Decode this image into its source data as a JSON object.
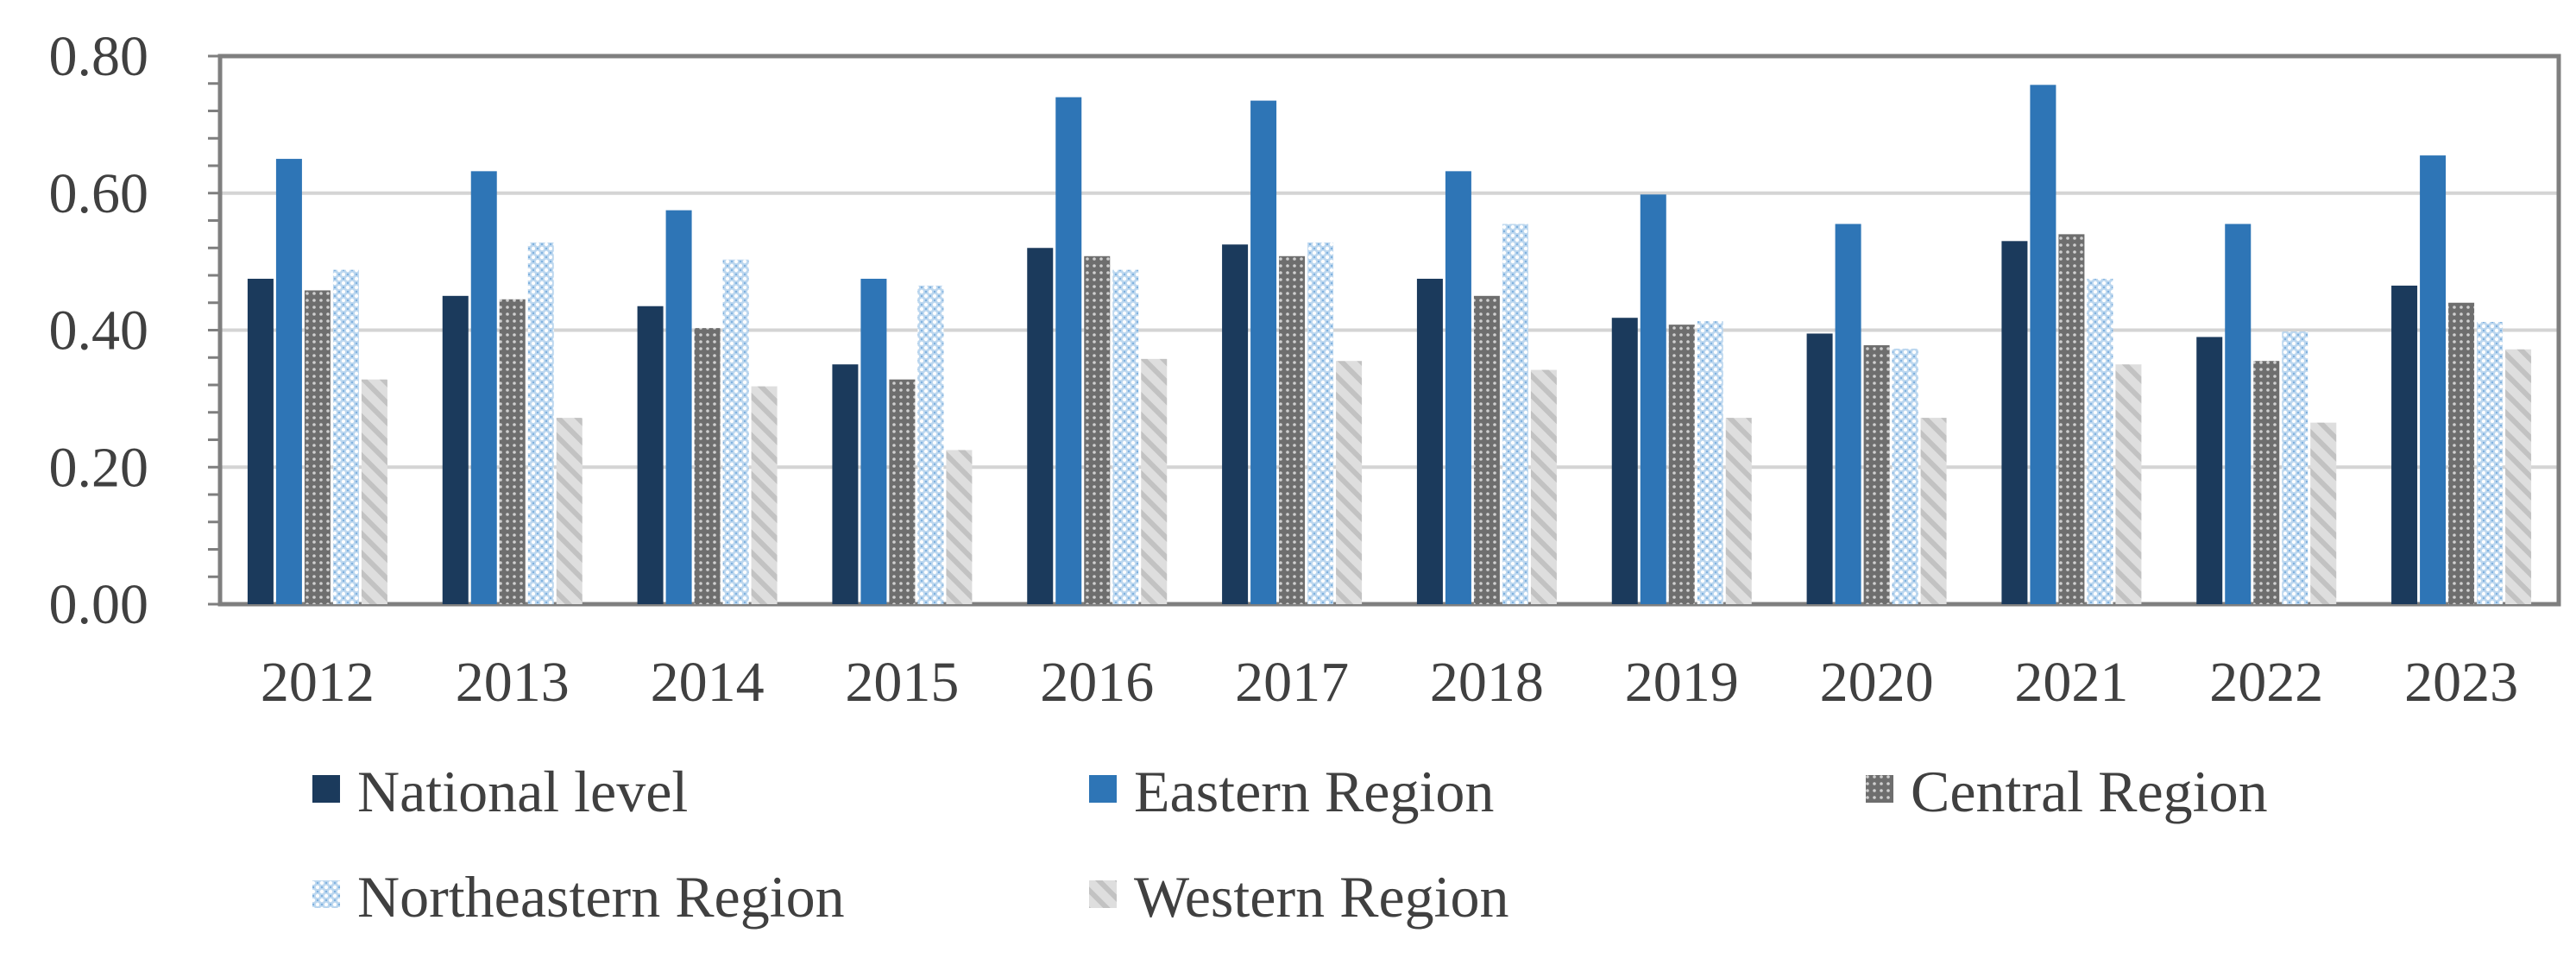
{
  "chart_data": {
    "type": "bar",
    "title": "",
    "xlabel": "",
    "ylabel": "",
    "categories": [
      "2012",
      "2013",
      "2014",
      "2015",
      "2016",
      "2017",
      "2018",
      "2019",
      "2020",
      "2021",
      "2022",
      "2023"
    ],
    "y_ticks": [
      "0.00",
      "0.20",
      "0.40",
      "0.60",
      "0.80"
    ],
    "ylim": [
      0,
      0.8
    ],
    "grid": true,
    "legend_position": "bottom",
    "series": [
      {
        "name": "National level",
        "color": "#1b3a5c",
        "pattern": "solid",
        "values": [
          0.475,
          0.45,
          0.435,
          0.35,
          0.52,
          0.525,
          0.475,
          0.418,
          0.395,
          0.53,
          0.39,
          0.465
        ]
      },
      {
        "name": "Eastern Region",
        "color": "#2e75b6",
        "pattern": "solid",
        "values": [
          0.65,
          0.632,
          0.575,
          0.475,
          0.74,
          0.735,
          0.632,
          0.598,
          0.555,
          0.758,
          0.555,
          0.655
        ]
      },
      {
        "name": "Central Region",
        "color": "#6e6e6e",
        "pattern": "dotted-grid",
        "values": [
          0.458,
          0.445,
          0.403,
          0.328,
          0.508,
          0.508,
          0.45,
          0.408,
          0.378,
          0.54,
          0.355,
          0.44
        ]
      },
      {
        "name": "Northeastern Region",
        "color": "#9dc3e6",
        "pattern": "dotted-light",
        "values": [
          0.488,
          0.528,
          0.503,
          0.465,
          0.488,
          0.528,
          0.555,
          0.413,
          0.373,
          0.475,
          0.398,
          0.412
        ]
      },
      {
        "name": "Western Region",
        "color": "#d9d9d9",
        "pattern": "diagonal-hatch",
        "values": [
          0.328,
          0.272,
          0.318,
          0.225,
          0.358,
          0.355,
          0.342,
          0.272,
          0.272,
          0.35,
          0.265,
          0.372
        ]
      }
    ]
  }
}
